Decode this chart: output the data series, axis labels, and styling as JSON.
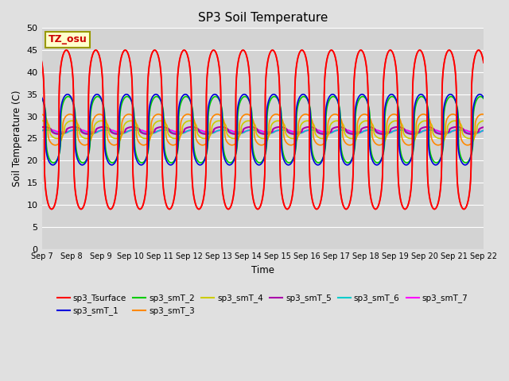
{
  "title": "SP3 Soil Temperature",
  "xlabel": "Time",
  "ylabel": "Soil Temperature (C)",
  "ylim": [
    0,
    50
  ],
  "yticks": [
    0,
    5,
    10,
    15,
    20,
    25,
    30,
    35,
    40,
    45,
    50
  ],
  "num_days": 15,
  "tz_label": "TZ_osu",
  "fig_bg_color": "#e0e0e0",
  "plot_bg_color": "#d3d3d3",
  "series": [
    {
      "name": "sp3_Tsurface",
      "color": "#ff0000",
      "lw": 1.2,
      "amplitude": 18.0,
      "mean": 27.0,
      "depth_factor": 0.0
    },
    {
      "name": "sp3_smT_1",
      "color": "#0000dd",
      "lw": 1.2,
      "amplitude": 8.0,
      "mean": 27.0,
      "depth_factor": 1.0
    },
    {
      "name": "sp3_smT_2",
      "color": "#00cc00",
      "lw": 1.2,
      "amplitude": 7.5,
      "mean": 27.0,
      "depth_factor": 1.5
    },
    {
      "name": "sp3_smT_3",
      "color": "#ff8800",
      "lw": 1.2,
      "amplitude": 3.5,
      "mean": 27.0,
      "depth_factor": 3.0
    },
    {
      "name": "sp3_smT_4",
      "color": "#cccc00",
      "lw": 1.2,
      "amplitude": 2.0,
      "mean": 27.0,
      "depth_factor": 4.5
    },
    {
      "name": "sp3_smT_5",
      "color": "#aa00aa",
      "lw": 1.5,
      "amplitude": 0.8,
      "mean": 26.8,
      "depth_factor": 6.0
    },
    {
      "name": "sp3_smT_6",
      "color": "#00cccc",
      "lw": 1.2,
      "amplitude": 0.4,
      "mean": 26.5,
      "depth_factor": 7.5
    },
    {
      "name": "sp3_smT_7",
      "color": "#ff00ff",
      "lw": 1.5,
      "amplitude": 0.25,
      "mean": 26.7,
      "depth_factor": 9.0
    }
  ]
}
